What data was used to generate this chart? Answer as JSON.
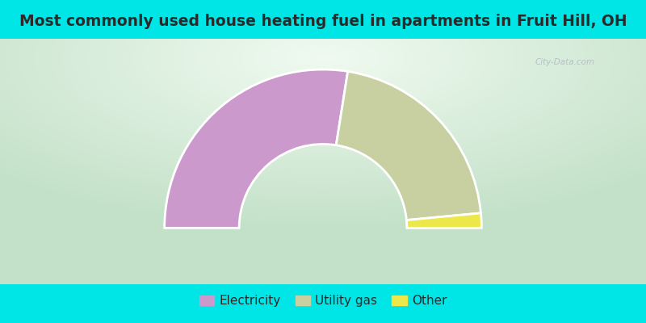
{
  "title": "Most commonly used house heating fuel in apartments in Fruit Hill, OH",
  "slices": [
    {
      "label": "Electricity",
      "value": 55.0,
      "color": "#cc99cc"
    },
    {
      "label": "Utility gas",
      "value": 42.0,
      "color": "#c8cfa0"
    },
    {
      "label": "Other",
      "value": 3.0,
      "color": "#ede84a"
    }
  ],
  "background_color": "#00e5e5",
  "title_color": "#2a2a2a",
  "title_fontsize": 13.5,
  "legend_fontsize": 11,
  "chart_area_color": "#d8eedc",
  "center_color": "#f0faf0"
}
